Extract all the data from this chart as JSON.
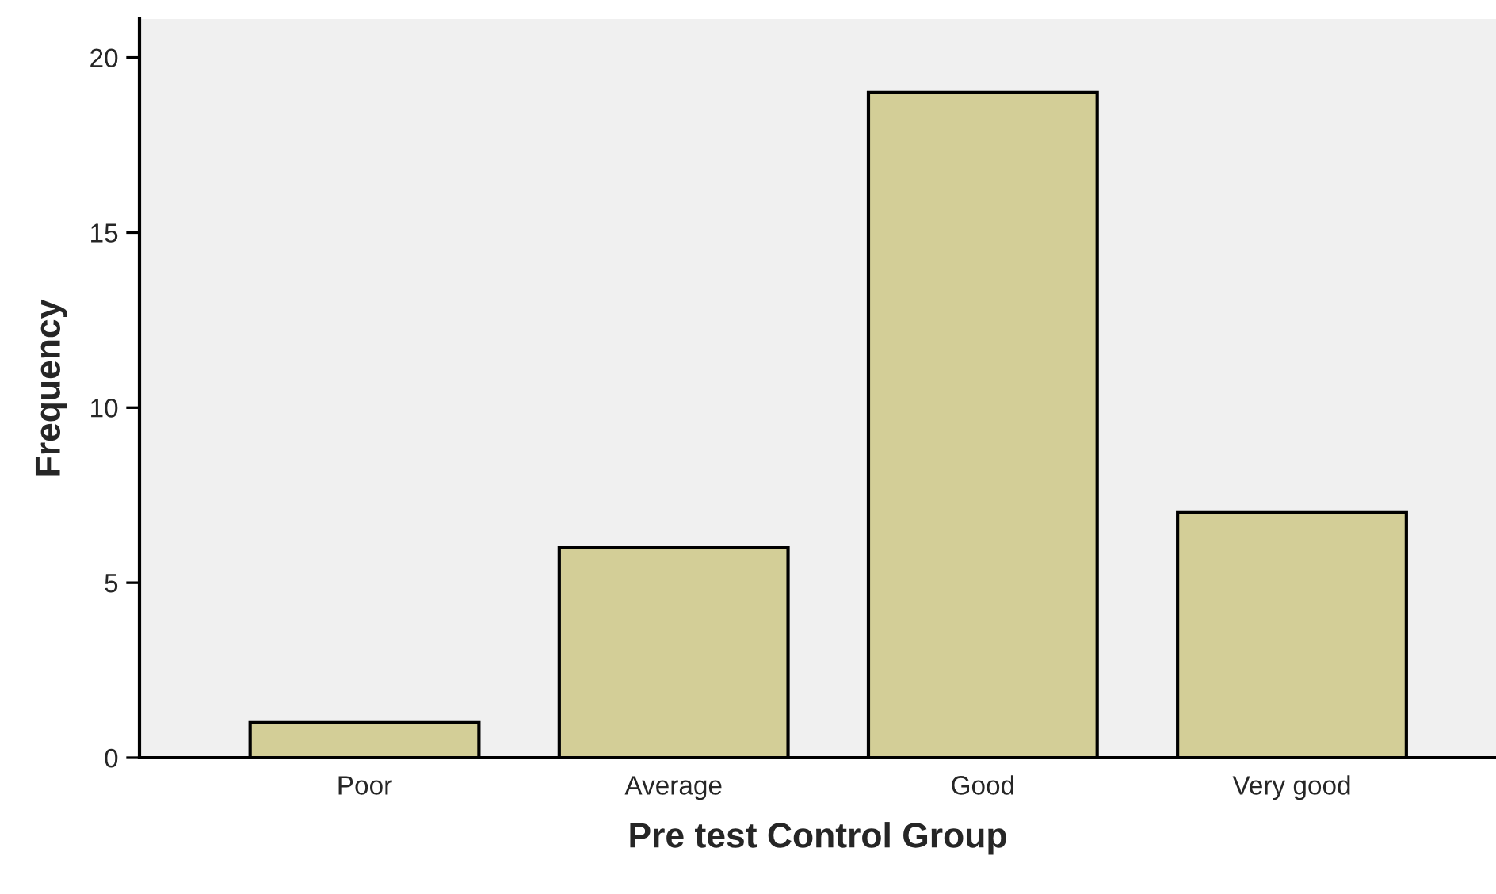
{
  "chart_data": {
    "type": "bar",
    "xlabel": "Pre test Control Group",
    "ylabel": "Frequency",
    "categories": [
      "Poor",
      "Average",
      "Good",
      "Very good"
    ],
    "values": [
      1,
      6,
      19,
      7
    ],
    "color": "#d3ce97",
    "ylim": [
      0,
      21.1
    ],
    "yticks": [
      0,
      5,
      10,
      15,
      20
    ],
    "grid": false,
    "legend": false
  }
}
